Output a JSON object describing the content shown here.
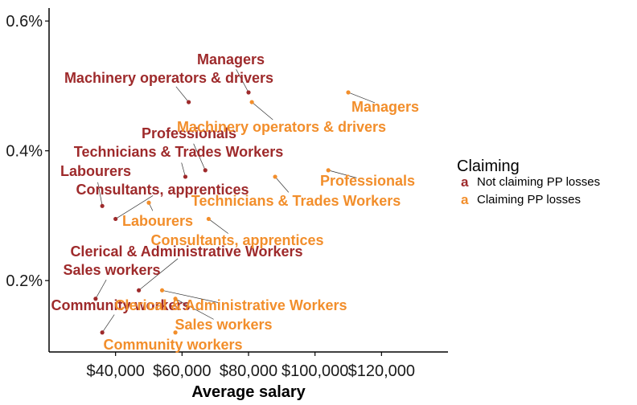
{
  "chart_data": {
    "type": "scatter",
    "xlabel": "Average salary",
    "ylabel": "",
    "xlim": [
      20000,
      140000
    ],
    "ylim": [
      0.0009,
      0.0062
    ],
    "x_ticks": [
      {
        "value": 40000,
        "label": "$40,000"
      },
      {
        "value": 60000,
        "label": "$60,000"
      },
      {
        "value": 80000,
        "label": "$80,000"
      },
      {
        "value": 100000,
        "label": "$100,000"
      },
      {
        "value": 120000,
        "label": "$120,000"
      }
    ],
    "y_ticks": [
      {
        "value": 0.002,
        "label": "0.2%"
      },
      {
        "value": 0.004,
        "label": "0.4%"
      },
      {
        "value": 0.006,
        "label": "0.6%"
      }
    ],
    "grid": false,
    "legend": {
      "title": "Claiming",
      "position": "right",
      "key_glyph": "a"
    },
    "series": [
      {
        "name": "Not claiming PP losses",
        "color": "#9e2a2b",
        "points": [
          {
            "label": "Managers",
            "x": 80000,
            "y": 0.0049
          },
          {
            "label": "Machinery operators & drivers",
            "x": 62000,
            "y": 0.00475
          },
          {
            "label": "Professionals",
            "x": 67000,
            "y": 0.0037
          },
          {
            "label": "Technicians & Trades Workers",
            "x": 61000,
            "y": 0.0036
          },
          {
            "label": "Labourers",
            "x": 36000,
            "y": 0.00315
          },
          {
            "label": "Consultants, apprentices",
            "x": 40000,
            "y": 0.00295
          },
          {
            "label": "Clerical & Administrative Workers",
            "x": 47000,
            "y": 0.00185
          },
          {
            "label": "Sales workers",
            "x": 34000,
            "y": 0.00172
          },
          {
            "label": "Community workers",
            "x": 36000,
            "y": 0.0012
          }
        ]
      },
      {
        "name": "Claiming PP losses",
        "color": "#f28e2b",
        "points": [
          {
            "label": "Managers",
            "x": 110000,
            "y": 0.0049
          },
          {
            "label": "Machinery operators & drivers",
            "x": 81000,
            "y": 0.00475
          },
          {
            "label": "Professionals",
            "x": 104000,
            "y": 0.0037
          },
          {
            "label": "Technicians & Trades Workers",
            "x": 88000,
            "y": 0.0036
          },
          {
            "label": "Labourers",
            "x": 50000,
            "y": 0.0032
          },
          {
            "label": "Consultants, apprentices",
            "x": 68000,
            "y": 0.00295
          },
          {
            "label": "Clerical & Administrative Workers",
            "x": 54000,
            "y": 0.00185
          },
          {
            "label": "Sales workers",
            "x": 58000,
            "y": 0.00172
          },
          {
            "label": "Community workers",
            "x": 58000,
            "y": 0.0012
          }
        ]
      }
    ]
  }
}
